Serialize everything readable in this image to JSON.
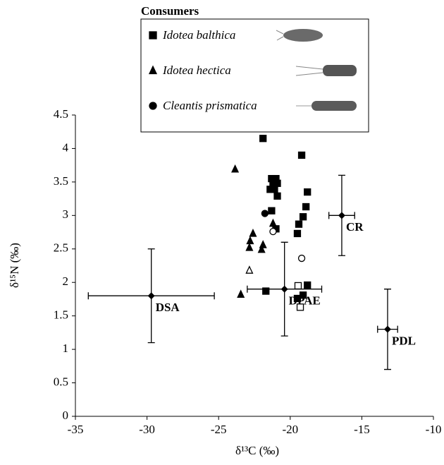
{
  "chart_data": {
    "type": "scatter",
    "legend_title": "Consumers",
    "xlabel": "δ¹³C (‰)",
    "ylabel": "δ¹⁵N (‰)",
    "xlim": [
      -35,
      -10
    ],
    "xticks": [
      -35,
      -30,
      -25,
      -20,
      -15,
      -10
    ],
    "ylim": [
      0,
      4.5
    ],
    "yticks": [
      0,
      0.5,
      1,
      1.5,
      2,
      2.5,
      3,
      3.5,
      4,
      4.5
    ],
    "series": [
      {
        "name": "Idotea balthica",
        "marker": "square",
        "color": "#000000",
        "x": [
          -21.9,
          -19.2,
          -21.3,
          -21.0,
          -21.2,
          -20.9,
          -21.4,
          -21.1,
          -18.8,
          -20.9,
          -18.9,
          -21.3,
          -19.1,
          -21.0,
          -19.4,
          -19.5,
          -21.7,
          -18.8,
          -19.5,
          -19.1,
          -19.45,
          -19.3
        ],
        "values": [
          4.15,
          3.9,
          3.55,
          3.55,
          3.45,
          3.48,
          3.39,
          3.39,
          3.35,
          3.29,
          3.13,
          3.07,
          2.98,
          2.8,
          2.87,
          2.73,
          1.87,
          1.96,
          1.76,
          1.81,
          1.95,
          1.63
        ],
        "filled": [
          true,
          true,
          true,
          true,
          true,
          true,
          true,
          true,
          true,
          true,
          true,
          true,
          true,
          true,
          true,
          true,
          true,
          true,
          true,
          true,
          false,
          false
        ]
      },
      {
        "name": "Idotea hectica",
        "marker": "triangle",
        "color": "#000000",
        "x": [
          -23.85,
          -22.6,
          -22.8,
          -22.85,
          -21.9,
          -22.0,
          -23.45,
          -21.2,
          -22.85
        ],
        "values": [
          3.69,
          2.73,
          2.62,
          2.52,
          2.56,
          2.49,
          1.82,
          2.88,
          2.18
        ],
        "filled": [
          true,
          true,
          true,
          true,
          true,
          true,
          true,
          true,
          false
        ]
      },
      {
        "name": "Cleantis prismatica",
        "marker": "circle",
        "color": "#000000",
        "x": [
          -21.77,
          -21.2,
          -19.2
        ],
        "values": [
          3.03,
          2.76,
          2.36
        ],
        "filled": [
          true,
          false,
          false
        ]
      }
    ],
    "sources": {
      "labels": [
        "DSA",
        "DPAE",
        "CR",
        "PDL"
      ],
      "x": [
        -29.7,
        -20.4,
        -16.4,
        -13.2
      ],
      "values": [
        1.8,
        1.9,
        3.0,
        1.3
      ],
      "xerr": [
        4.4,
        2.6,
        0.9,
        0.7
      ],
      "yerr": [
        0.7,
        0.7,
        0.6,
        0.6
      ]
    }
  }
}
